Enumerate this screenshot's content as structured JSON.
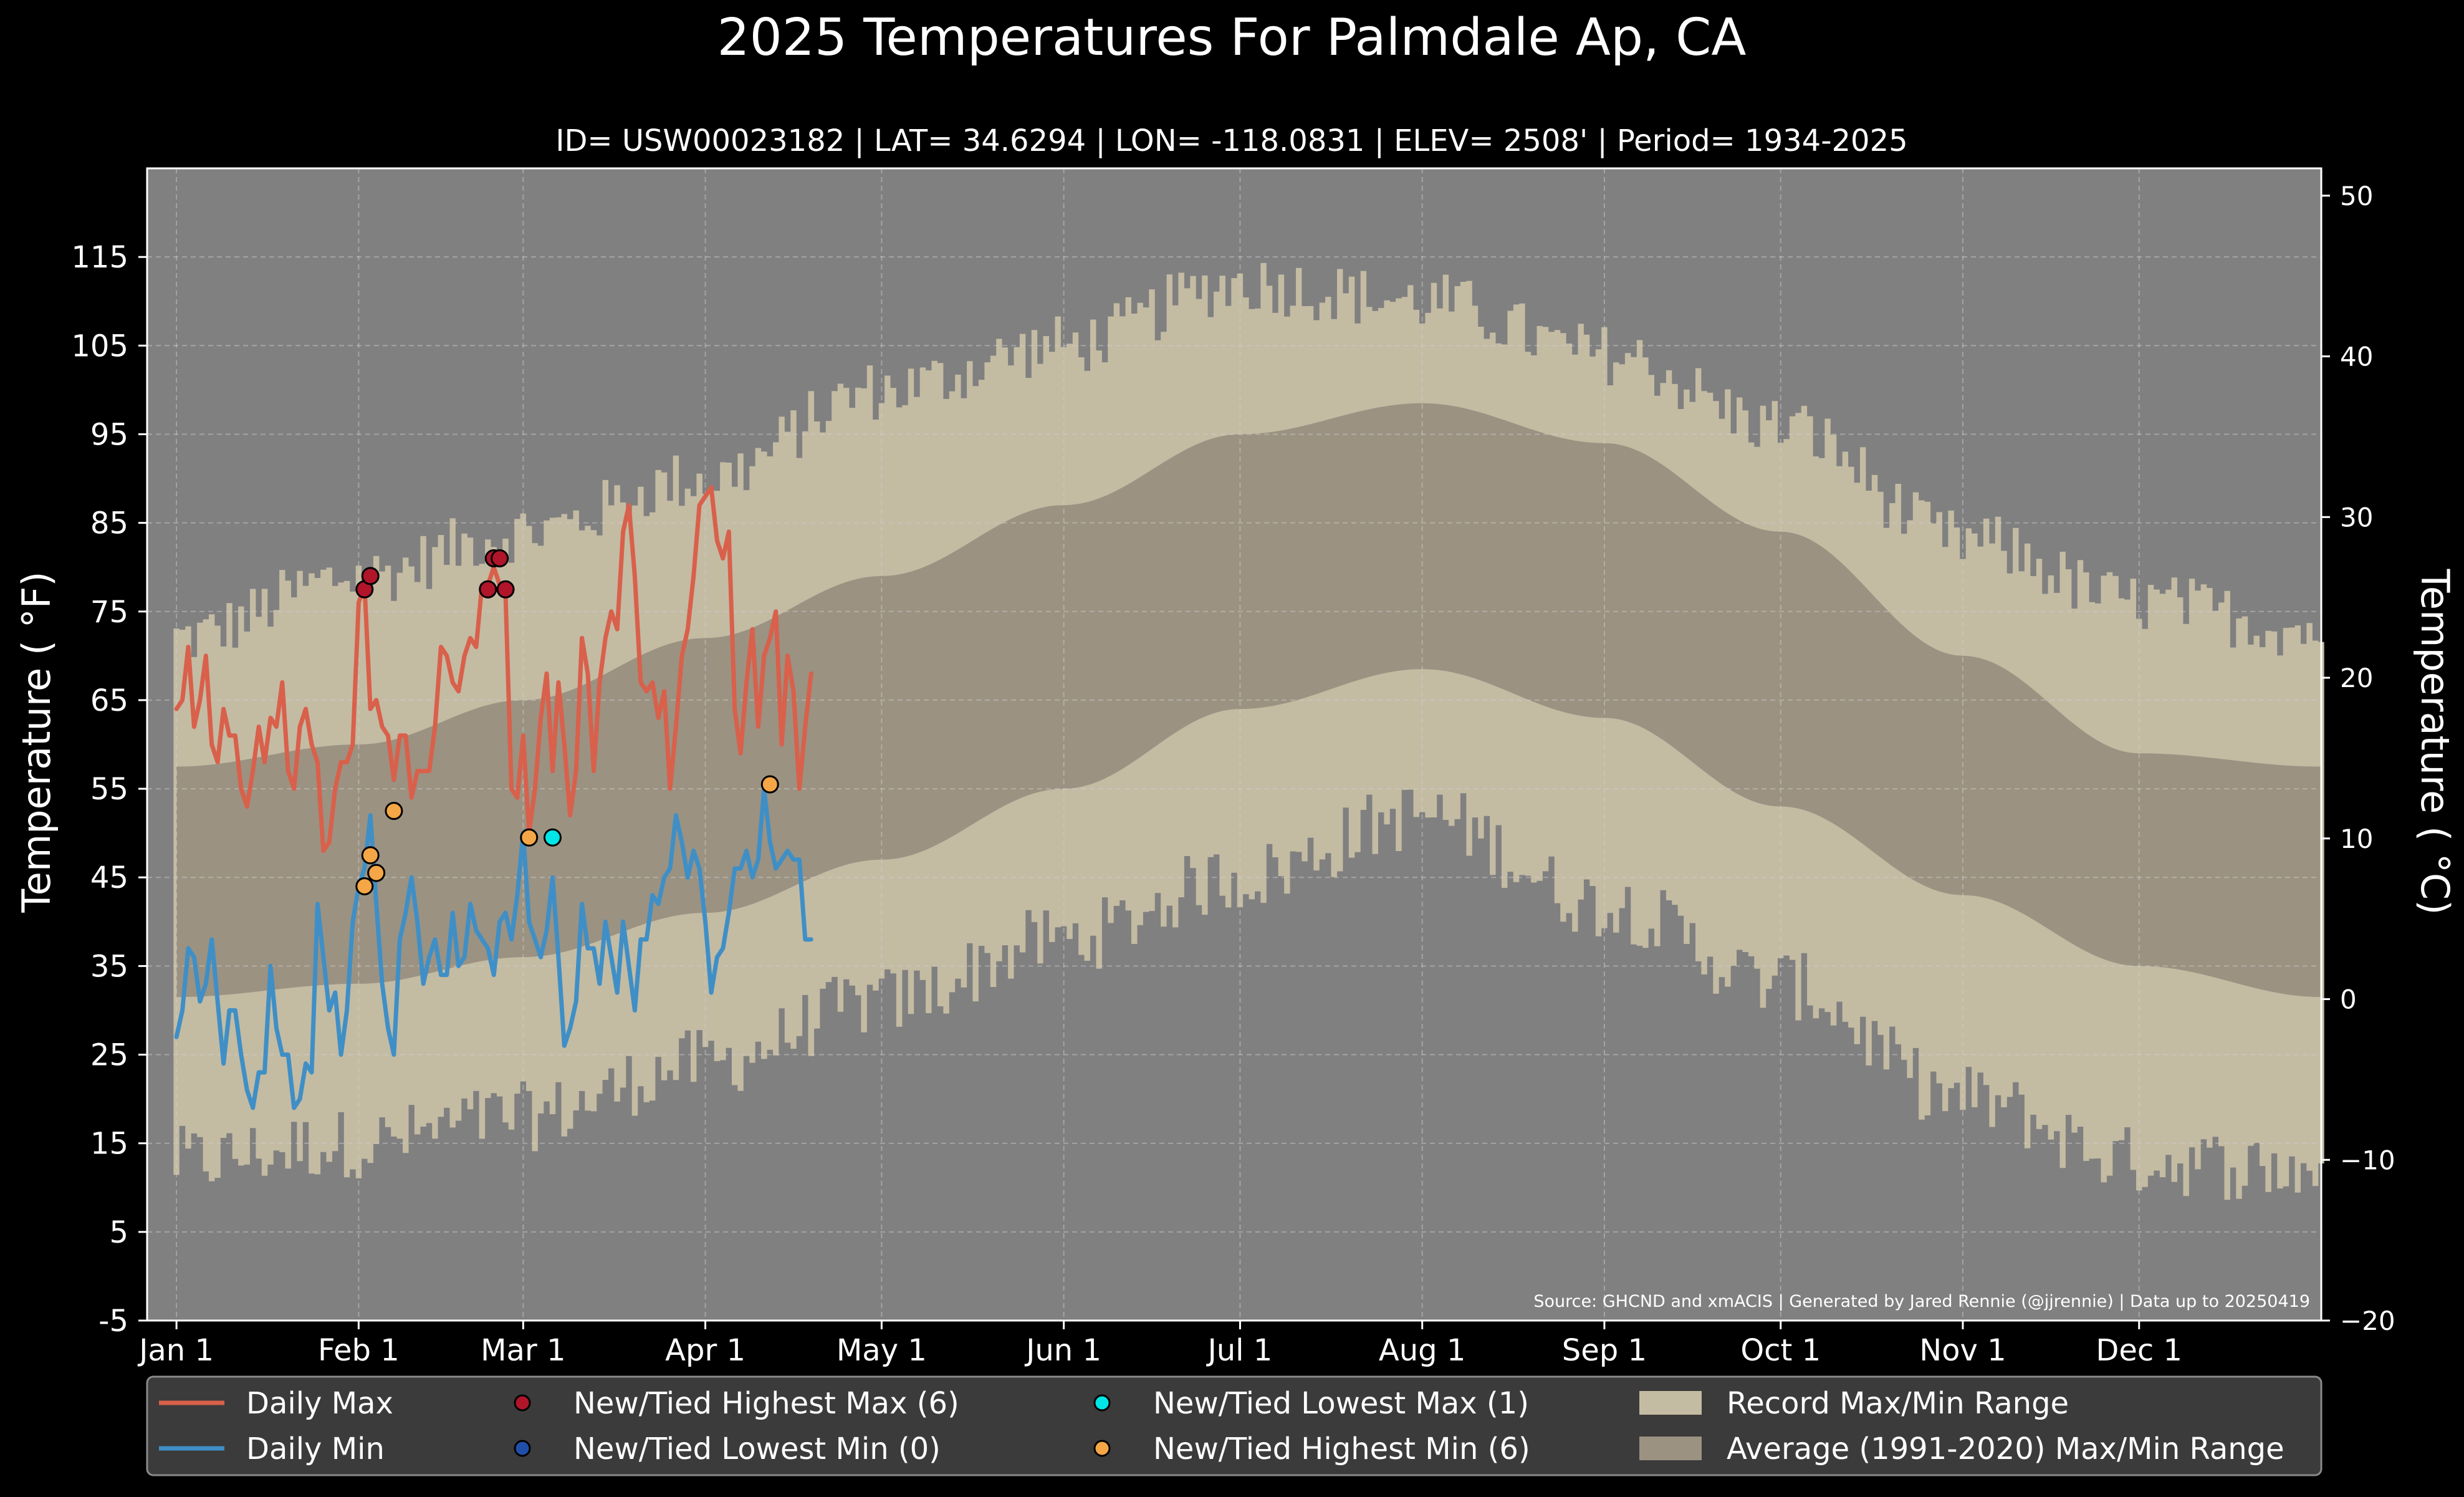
{
  "chart_data": {
    "type": "line",
    "title": "2025 Temperatures For Palmdale Ap, CA",
    "subtitle": "ID= USW00023182 | LAT= 34.6294 | LON= -118.0831 | ELEV= 2508' | Period= 1934-2025",
    "ylabel": "Temperature ($^\\circ$F)",
    "ylabel_display": "Temperature ( °F)",
    "ylabel_right": "Temperature ( °C)",
    "ylim": [
      -5,
      125
    ],
    "ylim_right": [
      -20,
      51.7
    ],
    "y_ticks": [
      "-5",
      "5",
      "15",
      "25",
      "35",
      "45",
      "55",
      "65",
      "75",
      "85",
      "95",
      "105",
      "115"
    ],
    "y_ticks_right": [
      "−20",
      "−10",
      "0",
      "10",
      "20",
      "30",
      "40",
      "50"
    ],
    "x_ticks": [
      {
        "label": "Jan 1",
        "day": 0
      },
      {
        "label": "Feb 1",
        "day": 31
      },
      {
        "label": "Mar 1",
        "day": 59
      },
      {
        "label": "Apr 1",
        "day": 90
      },
      {
        "label": "May 1",
        "day": 120
      },
      {
        "label": "Jun 1",
        "day": 151
      },
      {
        "label": "Jul 1",
        "day": 181
      },
      {
        "label": "Aug 1",
        "day": 212
      },
      {
        "label": "Sep 1",
        "day": 243
      },
      {
        "label": "Oct 1",
        "day": 273
      },
      {
        "label": "Nov 1",
        "day": 304
      },
      {
        "label": "Dec 1",
        "day": 334
      }
    ],
    "xlim": [
      -5,
      365
    ],
    "grid": true,
    "legend_placement": "bottom",
    "source": "Source: GHCND and xmACIS | Generated by Jared Rennie (@jjrennie) | Data up to 20250419",
    "record_max_knots": [
      [
        0,
        72
      ],
      [
        31,
        79
      ],
      [
        59,
        84
      ],
      [
        90,
        90
      ],
      [
        120,
        100
      ],
      [
        151,
        105
      ],
      [
        181,
        112
      ],
      [
        212,
        110
      ],
      [
        243,
        104
      ],
      [
        273,
        96
      ],
      [
        304,
        83
      ],
      [
        334,
        76
      ],
      [
        365,
        73
      ]
    ],
    "record_min_knots": [
      [
        0,
        13
      ],
      [
        31,
        15
      ],
      [
        59,
        18
      ],
      [
        90,
        24
      ],
      [
        120,
        31
      ],
      [
        151,
        38
      ],
      [
        181,
        45
      ],
      [
        212,
        52
      ],
      [
        243,
        42
      ],
      [
        273,
        33
      ],
      [
        304,
        20
      ],
      [
        334,
        13
      ],
      [
        365,
        12
      ]
    ],
    "avg_max_knots": [
      [
        0,
        57.5
      ],
      [
        31,
        60
      ],
      [
        59,
        65
      ],
      [
        90,
        72
      ],
      [
        120,
        79
      ],
      [
        151,
        87
      ],
      [
        181,
        95
      ],
      [
        212,
        98.5
      ],
      [
        243,
        94
      ],
      [
        273,
        84
      ],
      [
        304,
        70
      ],
      [
        334,
        59
      ],
      [
        365,
        57.5
      ]
    ],
    "avg_min_knots": [
      [
        0,
        31.5
      ],
      [
        31,
        33
      ],
      [
        59,
        36
      ],
      [
        90,
        41
      ],
      [
        120,
        47
      ],
      [
        151,
        55
      ],
      [
        181,
        64
      ],
      [
        212,
        68.5
      ],
      [
        243,
        63
      ],
      [
        273,
        53
      ],
      [
        304,
        43
      ],
      [
        334,
        35
      ],
      [
        365,
        31.5
      ]
    ],
    "series": [
      {
        "name": "Daily Max",
        "color": "#d9604b",
        "x": [
          0,
          1,
          2,
          3,
          4,
          5,
          6,
          7,
          8,
          9,
          10,
          11,
          12,
          13,
          14,
          15,
          16,
          17,
          18,
          19,
          20,
          21,
          22,
          23,
          24,
          25,
          26,
          27,
          28,
          29,
          30,
          31,
          32,
          33,
          34,
          35,
          36,
          37,
          38,
          39,
          40,
          41,
          42,
          43,
          44,
          45,
          46,
          47,
          48,
          49,
          50,
          51,
          52,
          53,
          54,
          55,
          56,
          57,
          58,
          59,
          60,
          61,
          62,
          63,
          64,
          65,
          66,
          67,
          68,
          69,
          70,
          71,
          72,
          73,
          74,
          75,
          76,
          77,
          78,
          79,
          80,
          81,
          82,
          83,
          84,
          85,
          86,
          87,
          88,
          89,
          90,
          91,
          92,
          93,
          94,
          95,
          96,
          97,
          98,
          99,
          100,
          101,
          102,
          103,
          104,
          105,
          106,
          107,
          108
        ],
        "y": [
          64,
          65,
          71,
          62,
          65,
          70,
          60,
          58,
          64,
          61,
          61,
          55,
          53,
          57,
          62,
          58,
          63,
          62,
          67,
          57,
          55,
          62,
          64,
          60,
          58,
          48,
          49,
          55,
          58,
          58,
          60,
          76,
          78,
          64,
          65,
          62,
          61,
          56,
          61,
          61,
          54,
          57,
          57,
          57,
          62,
          71,
          70,
          67,
          66,
          70,
          72,
          71,
          78,
          78,
          80,
          78,
          77,
          55,
          54,
          61,
          50,
          55,
          63,
          68,
          57,
          67,
          60,
          52,
          57,
          72,
          68,
          57,
          67,
          72,
          75,
          73,
          84,
          87,
          79,
          67,
          66,
          67,
          63,
          66,
          55,
          62,
          70,
          73,
          79,
          87,
          88,
          89,
          83,
          81,
          84,
          64,
          59,
          67,
          73,
          62,
          70,
          72,
          75,
          60,
          70,
          66,
          55,
          62,
          68
        ],
        "x_values_from": "day_of_year"
      },
      {
        "name": "Daily Min",
        "color": "#3f8fc6",
        "x": [
          0,
          1,
          2,
          3,
          4,
          5,
          6,
          7,
          8,
          9,
          10,
          11,
          12,
          13,
          14,
          15,
          16,
          17,
          18,
          19,
          20,
          21,
          22,
          23,
          24,
          25,
          26,
          27,
          28,
          29,
          30,
          31,
          32,
          33,
          34,
          35,
          36,
          37,
          38,
          39,
          40,
          41,
          42,
          43,
          44,
          45,
          46,
          47,
          48,
          49,
          50,
          51,
          52,
          53,
          54,
          55,
          56,
          57,
          58,
          59,
          60,
          61,
          62,
          63,
          64,
          65,
          66,
          67,
          68,
          69,
          70,
          71,
          72,
          73,
          74,
          75,
          76,
          77,
          78,
          79,
          80,
          81,
          82,
          83,
          84,
          85,
          86,
          87,
          88,
          89,
          90,
          91,
          92,
          93,
          94,
          95,
          96,
          97,
          98,
          99,
          100,
          101,
          102,
          103,
          104,
          105,
          106,
          107,
          108
        ],
        "y": [
          27,
          30,
          37,
          36,
          31,
          33,
          38,
          31,
          24,
          30,
          30,
          25,
          21,
          19,
          23,
          23,
          35,
          28,
          25,
          25,
          19,
          20,
          24,
          23,
          42,
          36,
          30,
          32,
          25,
          30,
          40,
          44,
          46,
          52,
          42,
          33,
          28,
          25,
          38,
          41,
          45,
          40,
          33,
          36,
          38,
          34,
          34,
          41,
          35,
          36,
          42,
          39,
          38,
          37,
          34,
          40,
          41,
          38,
          43,
          50,
          40,
          38,
          36,
          39,
          45,
          36,
          26,
          28,
          31,
          42,
          37,
          37,
          33,
          40,
          36,
          32,
          40,
          35,
          30,
          38,
          38,
          43,
          42,
          45,
          46,
          52,
          49,
          45,
          48,
          46,
          40,
          32,
          36,
          37,
          41,
          46,
          46,
          48,
          45,
          47,
          55,
          49,
          46,
          47,
          48,
          47,
          47,
          38,
          38
        ],
        "x_values_from": "day_of_year"
      }
    ],
    "markers": {
      "highest_max": [
        [
          32,
          77.5
        ],
        [
          33,
          79
        ],
        [
          53,
          77.5
        ],
        [
          54,
          81
        ],
        [
          55,
          81
        ],
        [
          56,
          77.5
        ]
      ],
      "lowest_min": [],
      "lowest_max": [
        [
          64,
          49.5
        ]
      ],
      "highest_min": [
        [
          32,
          44
        ],
        [
          33,
          47.5
        ],
        [
          34,
          45.5
        ],
        [
          37,
          52.5
        ],
        [
          60,
          49.5
        ],
        [
          101,
          55.5
        ]
      ]
    },
    "colors": {
      "background": "#000000",
      "plot_bg": "#808080",
      "record_band": "#c4bba3",
      "avg_band": "#9b9282",
      "daily_max": "#d9604b",
      "daily_min": "#3f8fc6",
      "marker_highest_max": "#b0152a",
      "marker_lowest_min": "#1f4fa8",
      "marker_lowest_max": "#00e5e5",
      "marker_highest_min": "#f5a646",
      "legend_bg": "#3b3b3b"
    },
    "legend": [
      {
        "label": "Daily Max",
        "kind": "line",
        "color_key": "daily_max"
      },
      {
        "label": "Daily Min",
        "kind": "line",
        "color_key": "daily_min"
      },
      {
        "label": "New/Tied Highest Max (6)",
        "kind": "marker",
        "color_key": "marker_highest_max"
      },
      {
        "label": "New/Tied Lowest Min (0)",
        "kind": "marker",
        "color_key": "marker_lowest_min"
      },
      {
        "label": "New/Tied Lowest Max (1)",
        "kind": "marker",
        "color_key": "marker_lowest_max"
      },
      {
        "label": "New/Tied Highest Min (6)",
        "kind": "marker",
        "color_key": "marker_highest_min"
      },
      {
        "label": "Record Max/Min Range",
        "kind": "patch",
        "color_key": "record_band"
      },
      {
        "label": "Average (1991-2020) Max/Min Range",
        "kind": "patch",
        "color_key": "avg_band"
      }
    ]
  }
}
